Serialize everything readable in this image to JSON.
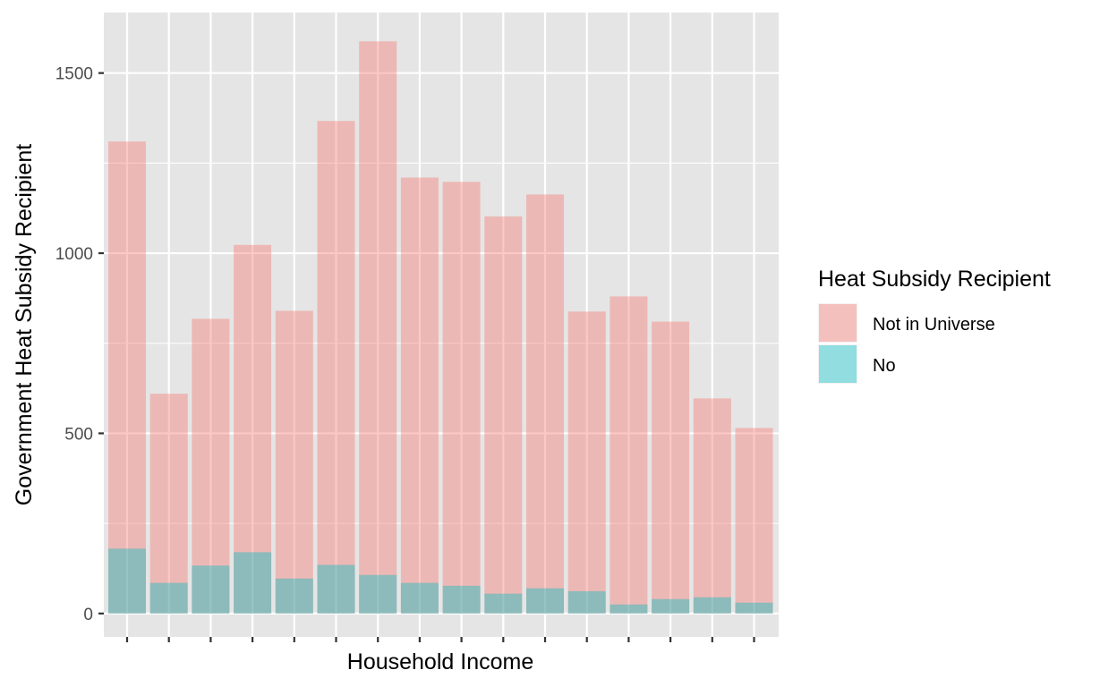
{
  "chart_data": {
    "type": "bar",
    "stacking": "overlay",
    "categories": [
      "",
      "",
      "",
      "",
      "",
      "",
      "",
      "",
      "",
      "",
      "",
      "",
      "",
      "",
      "",
      ""
    ],
    "series": [
      {
        "name": "Not in Universe",
        "color": "#F8766D",
        "opacity": 0.4,
        "values": [
          1310,
          610,
          818,
          1023,
          840,
          1367,
          1588,
          1210,
          1198,
          1102,
          1163,
          838,
          880,
          810,
          597,
          515
        ]
      },
      {
        "name": "No",
        "color": "#00BFC4",
        "opacity": 0.4,
        "values": [
          180,
          85,
          133,
          170,
          97,
          135,
          107,
          85,
          77,
          55,
          70,
          62,
          25,
          40,
          45,
          30
        ]
      }
    ],
    "xlabel": "Household Income",
    "ylabel": "Government Heat Subsidy Recipient",
    "ylim": [
      -65,
      1668
    ],
    "yticks": [
      0,
      500,
      1000,
      1500
    ],
    "ytick_labels": [
      "0",
      "500",
      "1000",
      "1500"
    ],
    "grid": true,
    "panel_background": "#E5E5E5",
    "grid_color": "#FFFFFF",
    "legend": {
      "title": "Heat Subsidy Recipient",
      "position": "right",
      "entries": [
        "Not in Universe",
        "No"
      ]
    }
  }
}
